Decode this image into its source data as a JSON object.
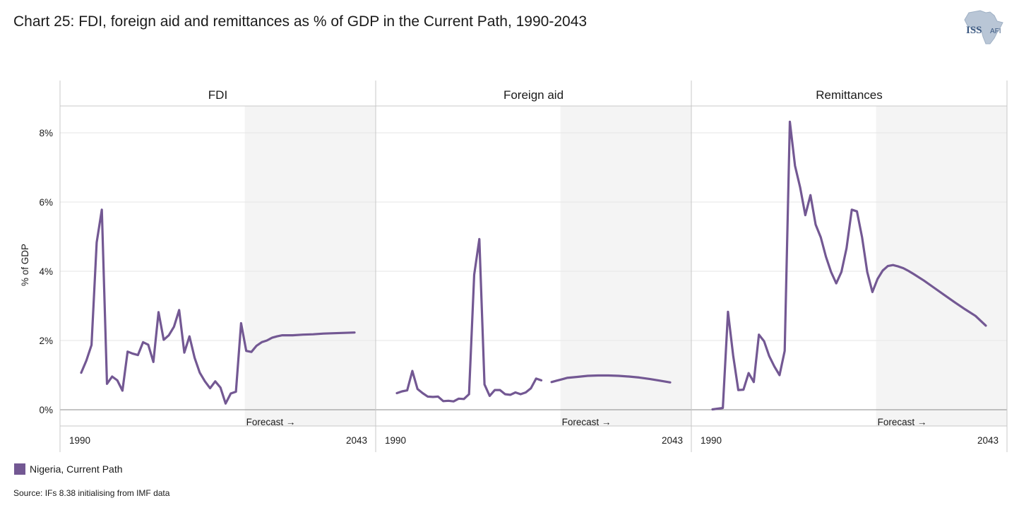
{
  "title": "Chart 25: FDI, foreign aid and remittances as % of GDP in the Current Path, 1990-2043",
  "logo": {
    "text": "ISS",
    "sub": "AFI",
    "icon": "africa-map-icon"
  },
  "source": "Source: IFs 8.38 initialising from IMF data",
  "colors": {
    "series": "#735893",
    "forecast_bg": "#f4f4f4",
    "grid": "#e6e6e6"
  },
  "chart_data": {
    "type": "line",
    "ylabel": "% of GDP",
    "ylim": [
      -0.4,
      8.8
    ],
    "yticks": [
      0,
      2,
      4,
      6,
      8
    ],
    "ytick_labels": [
      "0%",
      "2%",
      "4%",
      "6%",
      "8%"
    ],
    "xlim": [
      1990,
      2043
    ],
    "x_tick_labels": [
      "1990",
      "2043"
    ],
    "forecast_start": 2022,
    "forecast_label": "Forecast →",
    "legend": [
      {
        "name": "Nigeria, Current Path"
      }
    ],
    "panels": [
      {
        "name": "FDI",
        "series": [
          {
            "name": "Nigeria, Current Path",
            "segments": [
              [
                [
                  1990,
                  1.07
                ],
                [
                  1991,
                  1.42
                ],
                [
                  1992,
                  1.87
                ],
                [
                  1993,
                  4.83
                ],
                [
                  1994,
                  5.78
                ],
                [
                  1995,
                  0.75
                ],
                [
                  1996,
                  0.96
                ],
                [
                  1997,
                  0.85
                ],
                [
                  1998,
                  0.55
                ],
                [
                  1999,
                  1.68
                ],
                [
                  2000,
                  1.62
                ],
                [
                  2001,
                  1.58
                ],
                [
                  2002,
                  1.95
                ],
                [
                  2003,
                  1.88
                ],
                [
                  2004,
                  1.38
                ],
                [
                  2005,
                  2.82
                ],
                [
                  2006,
                  2.02
                ],
                [
                  2007,
                  2.15
                ],
                [
                  2008,
                  2.4
                ],
                [
                  2009,
                  2.88
                ],
                [
                  2010,
                  1.65
                ],
                [
                  2011,
                  2.12
                ],
                [
                  2012,
                  1.5
                ],
                [
                  2013,
                  1.07
                ],
                [
                  2014,
                  0.82
                ],
                [
                  2015,
                  0.62
                ],
                [
                  2016,
                  0.82
                ],
                [
                  2017,
                  0.64
                ],
                [
                  2018,
                  0.18
                ],
                [
                  2019,
                  0.47
                ],
                [
                  2020,
                  0.52
                ],
                [
                  2021,
                  2.5
                ],
                [
                  2022,
                  1.7
                ],
                [
                  2023,
                  1.67
                ],
                [
                  2024,
                  1.85
                ],
                [
                  2025,
                  1.95
                ],
                [
                  2026,
                  2.0
                ],
                [
                  2027,
                  2.08
                ],
                [
                  2028,
                  2.12
                ],
                [
                  2029,
                  2.15
                ],
                [
                  2030,
                  2.15
                ],
                [
                  2031,
                  2.15
                ],
                [
                  2033,
                  2.17
                ],
                [
                  2035,
                  2.18
                ],
                [
                  2037,
                  2.2
                ],
                [
                  2039,
                  2.21
                ],
                [
                  2041,
                  2.22
                ],
                [
                  2043,
                  2.23
                ]
              ]
            ]
          }
        ]
      },
      {
        "name": "Foreign aid",
        "series": [
          {
            "name": "Nigeria, Current Path",
            "segments": [
              [
                [
                  1990,
                  0.48
                ],
                [
                  1991,
                  0.53
                ],
                [
                  1992,
                  0.56
                ],
                [
                  1993,
                  1.12
                ],
                [
                  1994,
                  0.6
                ],
                [
                  1995,
                  0.48
                ],
                [
                  1996,
                  0.38
                ],
                [
                  1997,
                  0.37
                ],
                [
                  1998,
                  0.38
                ],
                [
                  1999,
                  0.25
                ],
                [
                  2000,
                  0.26
                ],
                [
                  2001,
                  0.24
                ],
                [
                  2002,
                  0.32
                ],
                [
                  2003,
                  0.31
                ],
                [
                  2004,
                  0.45
                ],
                [
                  2005,
                  3.9
                ],
                [
                  2006,
                  4.93
                ],
                [
                  2007,
                  0.73
                ],
                [
                  2008,
                  0.4
                ],
                [
                  2009,
                  0.57
                ],
                [
                  2010,
                  0.57
                ],
                [
                  2011,
                  0.45
                ],
                [
                  2012,
                  0.43
                ],
                [
                  2013,
                  0.5
                ],
                [
                  2014,
                  0.45
                ],
                [
                  2015,
                  0.5
                ],
                [
                  2016,
                  0.62
                ],
                [
                  2017,
                  0.9
                ],
                [
                  2018,
                  0.85
                ]
              ],
              [
                [
                  2020,
                  0.8
                ],
                [
                  2021,
                  0.84
                ],
                [
                  2022,
                  0.88
                ],
                [
                  2023,
                  0.92
                ],
                [
                  2025,
                  0.95
                ],
                [
                  2027,
                  0.98
                ],
                [
                  2029,
                  0.99
                ],
                [
                  2031,
                  0.99
                ],
                [
                  2033,
                  0.98
                ],
                [
                  2035,
                  0.96
                ],
                [
                  2037,
                  0.93
                ],
                [
                  2039,
                  0.89
                ],
                [
                  2041,
                  0.84
                ],
                [
                  2043,
                  0.79
                ]
              ]
            ]
          }
        ]
      },
      {
        "name": "Remittances",
        "series": [
          {
            "name": "Nigeria, Current Path",
            "segments": [
              [
                [
                  1990,
                  0.01
                ],
                [
                  1991,
                  0.03
                ],
                [
                  1992,
                  0.05
                ],
                [
                  1993,
                  2.83
                ],
                [
                  1994,
                  1.57
                ],
                [
                  1995,
                  0.57
                ],
                [
                  1996,
                  0.58
                ],
                [
                  1997,
                  1.06
                ],
                [
                  1998,
                  0.8
                ],
                [
                  1999,
                  2.17
                ],
                [
                  2000,
                  1.98
                ],
                [
                  2001,
                  1.55
                ],
                [
                  2002,
                  1.25
                ],
                [
                  2003,
                  1.0
                ],
                [
                  2004,
                  1.7
                ],
                [
                  2005,
                  8.32
                ],
                [
                  2006,
                  7.05
                ],
                [
                  2007,
                  6.42
                ],
                [
                  2008,
                  5.62
                ],
                [
                  2009,
                  6.2
                ],
                [
                  2010,
                  5.35
                ],
                [
                  2011,
                  4.98
                ],
                [
                  2012,
                  4.42
                ],
                [
                  2013,
                  3.98
                ],
                [
                  2014,
                  3.65
                ],
                [
                  2015,
                  3.98
                ],
                [
                  2016,
                  4.67
                ],
                [
                  2017,
                  5.78
                ],
                [
                  2018,
                  5.73
                ],
                [
                  2019,
                  4.98
                ],
                [
                  2020,
                  3.98
                ],
                [
                  2021,
                  3.4
                ],
                [
                  2022,
                  3.78
                ],
                [
                  2023,
                  4.02
                ],
                [
                  2024,
                  4.15
                ],
                [
                  2025,
                  4.18
                ],
                [
                  2026,
                  4.14
                ],
                [
                  2027,
                  4.09
                ],
                [
                  2028,
                  4.01
                ],
                [
                  2029,
                  3.92
                ],
                [
                  2031,
                  3.73
                ],
                [
                  2033,
                  3.52
                ],
                [
                  2035,
                  3.31
                ],
                [
                  2037,
                  3.1
                ],
                [
                  2039,
                  2.9
                ],
                [
                  2041,
                  2.71
                ],
                [
                  2043,
                  2.43
                ]
              ]
            ]
          }
        ]
      }
    ]
  }
}
